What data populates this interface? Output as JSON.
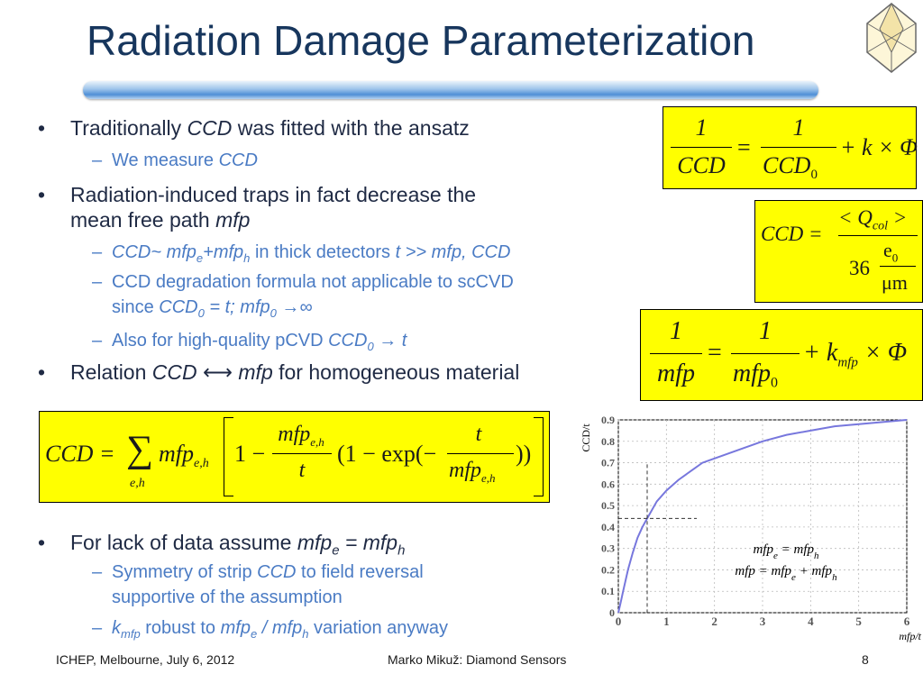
{
  "slide": {
    "title": "Radiation Damage Parameterization",
    "bullets": [
      {
        "level": 1,
        "parts": [
          [
            "Traditionally ",
            false
          ],
          [
            "CCD",
            true
          ],
          [
            " was fitted with the ansatz",
            false
          ]
        ]
      },
      {
        "level": 2,
        "parts": [
          [
            "We measure ",
            false
          ],
          [
            "CCD",
            true
          ]
        ]
      },
      {
        "level": 1,
        "parts": [
          [
            "Radiation-induced traps in fact decrease the",
            false
          ]
        ]
      },
      {
        "level": 1,
        "cont": true,
        "parts": [
          [
            "mean free path ",
            false
          ],
          [
            "mfp",
            true
          ]
        ]
      },
      {
        "level": 2,
        "parts": [
          [
            "CCD~ mfp",
            true
          ],
          [
            "e",
            true,
            "sub"
          ],
          [
            "+mfp",
            true
          ],
          [
            "h",
            true,
            "sub"
          ],
          [
            " in thick detectors ",
            false
          ],
          [
            "t >> mfp, CCD",
            true
          ]
        ]
      },
      {
        "level": 2,
        "parts": [
          [
            "CCD degradation formula not applicable to scCVD",
            false
          ]
        ]
      },
      {
        "level": 2,
        "cont": true,
        "parts": [
          [
            "since ",
            false
          ],
          [
            "CCD",
            true
          ],
          [
            "0",
            true,
            "sub"
          ],
          [
            " = t; mfp",
            true
          ],
          [
            "0",
            true,
            "sub"
          ],
          [
            " →∞",
            true
          ]
        ]
      },
      {
        "level": 2,
        "parts": [
          [
            "Also for high-quality pCVD ",
            false
          ],
          [
            "CCD",
            true
          ],
          [
            "0",
            true,
            "sub"
          ],
          [
            " → t",
            true
          ]
        ]
      },
      {
        "level": 1,
        "parts": [
          [
            "Relation ",
            false
          ],
          [
            "CCD",
            true
          ],
          [
            " ⟷ ",
            false
          ],
          [
            "mfp",
            true
          ],
          [
            " for homogeneous material",
            false
          ]
        ]
      },
      {
        "level": 1,
        "parts": [
          [
            "For lack of data assume ",
            false
          ],
          [
            "mfp",
            true
          ],
          [
            "e",
            true,
            "sub"
          ],
          [
            " = mfp",
            true
          ],
          [
            "h",
            true,
            "sub"
          ]
        ]
      },
      {
        "level": 2,
        "parts": [
          [
            "Symmetry of strip ",
            false
          ],
          [
            "CCD",
            true
          ],
          [
            " to field reversal",
            false
          ]
        ]
      },
      {
        "level": 2,
        "cont": true,
        "parts": [
          [
            "supportive of the assumption",
            false
          ]
        ]
      },
      {
        "level": 2,
        "parts": [
          [
            "k",
            true
          ],
          [
            "mfp",
            true,
            "sub"
          ],
          [
            " robust to ",
            false
          ],
          [
            "mfp",
            true
          ],
          [
            "e",
            true,
            "sub"
          ],
          [
            " / mfp",
            true
          ],
          [
            "h",
            true,
            "sub"
          ],
          [
            " variation anyway",
            false
          ]
        ]
      }
    ],
    "footer": {
      "left": "ICHEP, Melbourne, July 6, 2012",
      "center": "Marko Mikuž: Diamond Sensors",
      "page": "8"
    }
  },
  "chart_data": {
    "type": "line",
    "title": "",
    "xlabel": "mfp/t",
    "ylabel": "CCD/t",
    "xlim": [
      0,
      6
    ],
    "ylim": [
      0,
      0.9
    ],
    "xticks": [
      "0",
      "1",
      "2",
      "3",
      "4",
      "5",
      "6"
    ],
    "yticks": [
      "0",
      "0.1",
      "0.2",
      "0.3",
      "0.4",
      "0.5",
      "0.6",
      "0.7",
      "0.8",
      "0.9"
    ],
    "series": [
      {
        "x": [
          0,
          0.05,
          0.1,
          0.2,
          0.3,
          0.4,
          0.5,
          0.6,
          0.8,
          1,
          1.25,
          1.5,
          1.75,
          2,
          2.5,
          3,
          3.5,
          4,
          4.5,
          5,
          5.5,
          6
        ],
        "y": [
          0,
          0.05,
          0.1,
          0.2,
          0.28,
          0.35,
          0.4,
          0.44,
          0.52,
          0.57,
          0.62,
          0.66,
          0.7,
          0.72,
          0.76,
          0.8,
          0.83,
          0.85,
          0.87,
          0.88,
          0.89,
          0.9
        ]
      }
    ],
    "annotations": {
      "line1": {
        "a": "mfp",
        "a_sub": "e",
        "b": " = mfp",
        "b_sub": "h"
      },
      "line2": {
        "a": "mfp = mfp",
        "a_sub": "e",
        "b": " + mfp",
        "b_sub": "h"
      },
      "marker": {
        "x": 0.6,
        "y": 0.44
      }
    },
    "grid": true,
    "line_color": "#7777dd"
  },
  "formulas": {
    "f1": {
      "lhs_num": "1",
      "lhs_den": "CCD",
      "eq": "=",
      "rhs_num": "1",
      "rhs_den": "CCD",
      "rhs_den_sub": "0",
      "tail": "+ k × Φ"
    },
    "f2": {
      "lhs": "CCD =",
      "num": "< Q",
      "num_sub": "col",
      "num_end": " >",
      "den_a": "36",
      "den_num": "e",
      "den_num_sub": "0",
      "den_den": "μm"
    },
    "f3": {
      "lhs_num": "1",
      "lhs_den": "mfp",
      "eq": "=",
      "rhs_num": "1",
      "rhs_den": "mfp",
      "rhs_den_sub": "0",
      "tail_a": "+ k",
      "tail_sub": "mfp",
      "tail_b": " × Φ"
    },
    "f4": {
      "lhs": "CCD =",
      "sum": "∑",
      "sum_sub": "e,h",
      "term": "mfp",
      "term_sub": "e,h",
      "one": "1 −",
      "frac1_num": "mfp",
      "frac1_num_sub": "e,h",
      "frac1_den": "t",
      "mid": "(1 − exp(−",
      "frac2_num": "t",
      "frac2_den": "mfp",
      "frac2_den_sub": "e,h",
      "close": "))"
    }
  }
}
